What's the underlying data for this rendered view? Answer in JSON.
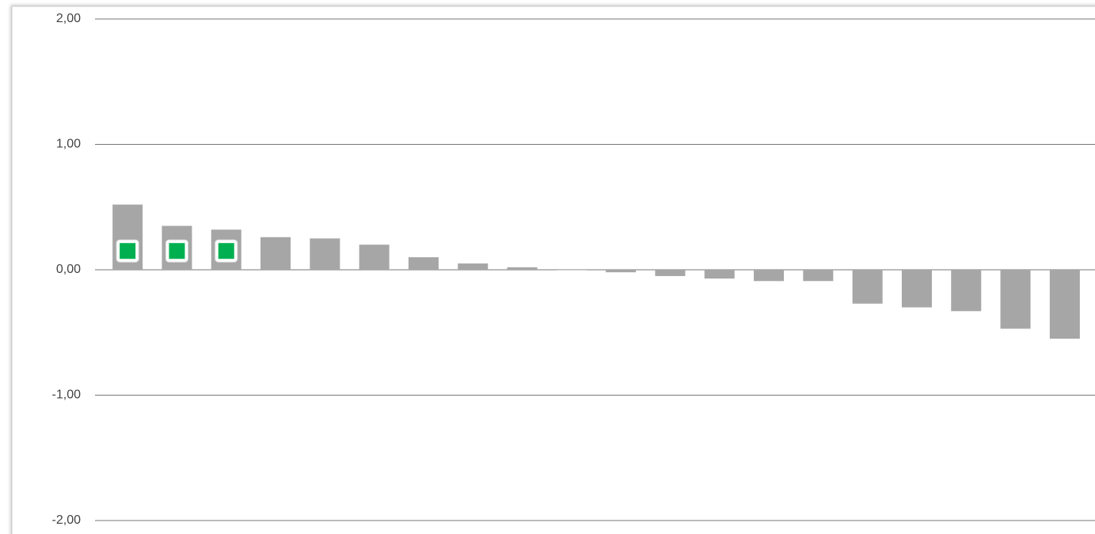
{
  "chart_data": {
    "type": "bar",
    "categories": [
      null,
      null,
      null,
      null,
      null,
      null,
      null,
      null,
      null,
      null,
      null,
      null,
      null,
      null,
      null,
      null,
      null,
      null,
      null,
      null
    ],
    "series": [
      {
        "color": "#a6a6a6",
        "values": [
          0.52,
          0.35,
          0.32,
          0.26,
          0.25,
          0.2,
          0.1,
          0.05,
          0.02,
          0.0,
          -0.02,
          -0.05,
          -0.07,
          -0.09,
          -0.09,
          -0.27,
          -0.3,
          -0.33,
          -0.47,
          -0.55
        ]
      },
      {
        "color": "#00b050",
        "values": [
          0.15,
          0.15,
          0.15,
          null,
          null,
          null,
          null,
          null,
          null,
          null,
          null,
          null,
          null,
          null,
          null,
          null,
          null,
          null,
          null,
          null
        ]
      }
    ],
    "ylim": [
      -2,
      2
    ],
    "yticks": [
      {
        "value": 2,
        "label": "2,00"
      },
      {
        "value": 1,
        "label": "1,00"
      },
      {
        "value": 0,
        "label": "0,00"
      },
      {
        "value": -1,
        "label": "-1,00"
      },
      {
        "value": -2,
        "label": "-2,00"
      }
    ],
    "grid": true
  }
}
